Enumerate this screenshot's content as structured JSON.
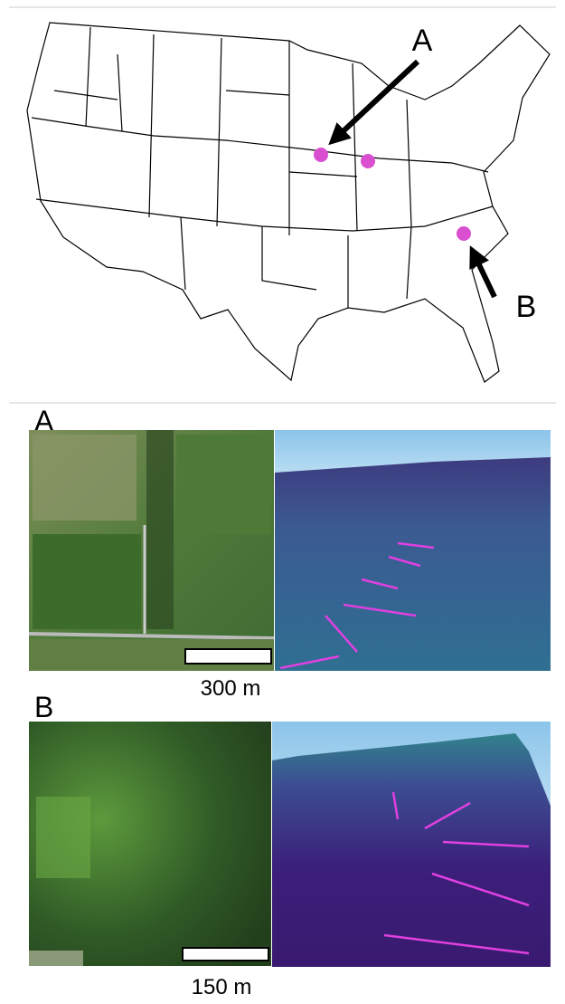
{
  "map": {
    "label_a": "A",
    "label_b": "B"
  },
  "panels": [
    {
      "label": "A",
      "scale": "300 m"
    },
    {
      "label": "B",
      "scale": "150 m"
    }
  ]
}
